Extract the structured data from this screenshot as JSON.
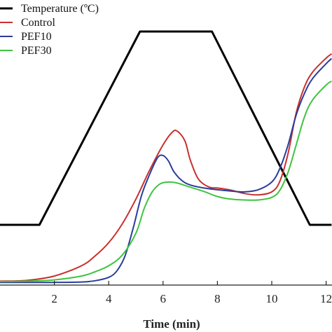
{
  "chart_data": {
    "type": "line",
    "title": "",
    "xlabel": "Time (min)",
    "ylabel": "",
    "xlim": [
      0,
      12.2
    ],
    "xticks": [
      2,
      4,
      6,
      8,
      10,
      12
    ],
    "xtick_labels": [
      "2",
      "4",
      "6",
      "8",
      "10",
      "12"
    ],
    "grid": false,
    "legend_position": "top-left",
    "series": [
      {
        "name": "Temperature (ºC)",
        "color": "#000000",
        "x": [
          0,
          1.45,
          5.15,
          7.8,
          11.4,
          12.2
        ],
        "y": [
          50,
          50,
          95,
          95,
          50,
          50
        ]
      },
      {
        "name": "Control",
        "color": "#c8302c",
        "x": [
          0,
          1,
          2,
          3,
          3.5,
          4,
          4.5,
          5,
          5.5,
          6,
          6.3,
          6.5,
          6.8,
          7,
          7.3,
          7.7,
          8,
          8.5,
          9,
          9.5,
          10,
          10.3,
          10.6,
          10.9,
          11.2,
          11.5,
          12,
          12.2
        ],
        "y": [
          2060,
          2080,
          2180,
          2420,
          2650,
          2960,
          3400,
          3980,
          4650,
          5250,
          5520,
          5580,
          5350,
          4900,
          4450,
          4260,
          4240,
          4190,
          4110,
          4080,
          4150,
          4400,
          5050,
          6000,
          6600,
          6950,
          7280,
          7380
        ]
      },
      {
        "name": "PEF10",
        "color": "#2a3c9c",
        "x": [
          0,
          1,
          2,
          3,
          3.5,
          4,
          4.3,
          4.6,
          4.9,
          5.2,
          5.5,
          5.8,
          6,
          6.2,
          6.4,
          6.7,
          7,
          7.5,
          8,
          8.5,
          9,
          9.5,
          10,
          10.3,
          10.6,
          10.9,
          11.2,
          11.5,
          12,
          12.2
        ],
        "y": [
          2030,
          2030,
          2030,
          2040,
          2070,
          2150,
          2300,
          2650,
          3300,
          4050,
          4550,
          4950,
          5000,
          4870,
          4620,
          4410,
          4310,
          4240,
          4200,
          4170,
          4150,
          4200,
          4380,
          4700,
          5250,
          5950,
          6450,
          6800,
          7150,
          7270
        ]
      },
      {
        "name": "PEF30",
        "color": "#3ec43e",
        "x": [
          0,
          1,
          2,
          3,
          3.5,
          4,
          4.5,
          5,
          5.3,
          5.6,
          5.9,
          6.2,
          6.5,
          7,
          7.5,
          8,
          8.5,
          9,
          9.5,
          10,
          10.3,
          10.6,
          10.9,
          11.2,
          11.5,
          12,
          12.2
        ],
        "y": [
          2050,
          2060,
          2090,
          2180,
          2280,
          2420,
          2670,
          3180,
          3750,
          4150,
          4340,
          4380,
          4360,
          4260,
          4160,
          4040,
          3980,
          3960,
          3960,
          4020,
          4190,
          4610,
          5250,
          5900,
          6300,
          6650,
          6740
        ]
      }
    ]
  }
}
